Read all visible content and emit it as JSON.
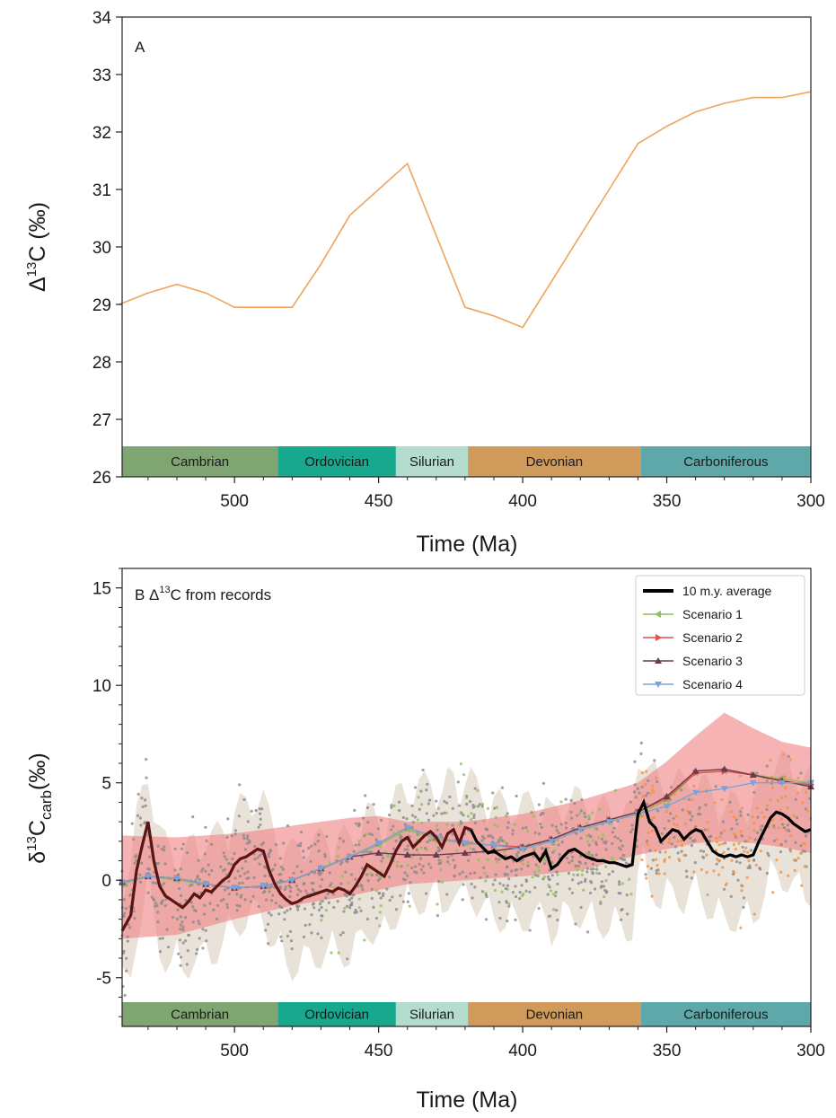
{
  "periods": [
    {
      "name": "Cambrian",
      "start": 539,
      "end": 485,
      "color": "#7fa672"
    },
    {
      "name": "Ordovician",
      "start": 485,
      "end": 444,
      "color": "#17a88e"
    },
    {
      "name": "Silurian",
      "start": 444,
      "end": 419,
      "color": "#b4dccc"
    },
    {
      "name": "Devonian",
      "start": 419,
      "end": 359,
      "color": "#cf9a5a"
    },
    {
      "name": "Carboniferous",
      "start": 359,
      "end": 299,
      "color": "#5fa8a9"
    }
  ],
  "chart_data": [
    {
      "type": "line",
      "panel_label": "A",
      "xlabel": "Time (Ma)",
      "ylabel": "Δ13C (‰)",
      "ylabel_parts": {
        "prefix": "Δ",
        "sup": "13",
        "main": "C (‰)"
      },
      "xlim": [
        539,
        300
      ],
      "ylim": [
        26,
        34
      ],
      "x_ticks": [
        500,
        450,
        400,
        350,
        300
      ],
      "y_ticks": [
        26,
        27,
        28,
        29,
        30,
        31,
        32,
        33,
        34
      ],
      "grid": false,
      "line_color": "#f0a35c",
      "x": [
        540,
        530,
        520,
        510,
        500,
        490,
        480,
        470,
        460,
        450,
        440,
        420,
        410,
        400,
        390,
        380,
        370,
        360,
        350,
        340,
        330,
        320,
        310,
        300
      ],
      "y": [
        29.0,
        29.2,
        29.35,
        29.2,
        28.95,
        28.95,
        28.95,
        29.7,
        30.55,
        31.0,
        31.45,
        28.95,
        28.8,
        28.6,
        29.4,
        30.2,
        31.0,
        31.8,
        32.1,
        32.35,
        32.5,
        32.6,
        32.6,
        32.7
      ]
    },
    {
      "type": "line",
      "panel_label": "B Δ13C from records",
      "panel_label_parts": {
        "prefix": "B Δ",
        "sup": "13",
        "main": "C from records"
      },
      "xlabel": "Time (Ma)",
      "ylabel": "δ13Ccarb(‰)",
      "ylabel_parts": {
        "prefix": "δ",
        "sup": "13",
        "main": "C",
        "sub": "carb",
        "suffix": "(‰)"
      },
      "xlim": [
        539,
        300
      ],
      "ylim": [
        -7.5,
        16
      ],
      "x_ticks": [
        500,
        450,
        400,
        350,
        300
      ],
      "y_ticks": [
        -5,
        0,
        5,
        10,
        15
      ],
      "grid": false,
      "legend_position": "top-right",
      "series": [
        {
          "name": "10 m.y. average",
          "color": "#000000",
          "marker": "none",
          "x": [
            539,
            536,
            534,
            532,
            530,
            528,
            526,
            524,
            522,
            520,
            518,
            516,
            514,
            512,
            510,
            508,
            506,
            504,
            502,
            500,
            498,
            496,
            494,
            492,
            490,
            488,
            486,
            484,
            482,
            480,
            478,
            476,
            474,
            472,
            470,
            468,
            466,
            464,
            462,
            460,
            458,
            456,
            454,
            452,
            450,
            448,
            446,
            444,
            442,
            440,
            438,
            436,
            434,
            432,
            430,
            428,
            426,
            424,
            422,
            420,
            418,
            416,
            414,
            412,
            410,
            408,
            406,
            404,
            402,
            400,
            398,
            396,
            394,
            392,
            390,
            388,
            386,
            384,
            382,
            380,
            378,
            376,
            374,
            372,
            370,
            368,
            366,
            364,
            362,
            360,
            358,
            356,
            354,
            352,
            350,
            348,
            346,
            344,
            342,
            340,
            338,
            336,
            334,
            332,
            330,
            328,
            326,
            324,
            322,
            320,
            318,
            316,
            314,
            312,
            310,
            308,
            306,
            304,
            302,
            300
          ],
          "y": [
            -2.6,
            -1.8,
            0.5,
            1.8,
            3.0,
            1.0,
            -0.3,
            -0.8,
            -1.0,
            -1.2,
            -1.4,
            -1.1,
            -0.7,
            -0.9,
            -0.5,
            -0.6,
            -0.3,
            0.0,
            0.2,
            0.8,
            1.1,
            1.2,
            1.4,
            1.6,
            1.5,
            0.5,
            -0.2,
            -0.7,
            -1.0,
            -1.2,
            -1.1,
            -0.9,
            -0.8,
            -0.7,
            -0.6,
            -0.5,
            -0.6,
            -0.4,
            -0.5,
            -0.7,
            -0.3,
            0.2,
            0.8,
            0.6,
            0.4,
            0.2,
            0.8,
            1.5,
            2.0,
            2.2,
            1.7,
            2.0,
            2.3,
            2.5,
            2.2,
            1.7,
            2.4,
            2.6,
            1.9,
            2.7,
            2.6,
            2.0,
            1.7,
            1.4,
            1.5,
            1.3,
            1.1,
            1.2,
            1.0,
            1.2,
            1.3,
            1.4,
            1.0,
            1.5,
            0.6,
            0.8,
            1.2,
            1.5,
            1.6,
            1.4,
            1.2,
            1.1,
            1.0,
            1.0,
            0.9,
            0.9,
            0.8,
            0.7,
            0.8,
            3.4,
            4.0,
            3.0,
            2.7,
            2.0,
            2.3,
            2.6,
            2.5,
            2.1,
            2.4,
            2.6,
            2.5,
            2.0,
            1.5,
            1.3,
            1.2,
            1.3,
            1.2,
            1.3,
            1.2,
            1.3,
            2.0,
            2.6,
            3.2,
            3.5,
            3.4,
            3.2,
            2.9,
            2.7,
            2.5,
            2.6
          ]
        },
        {
          "name": "Scenario 1",
          "color": "#8cc05a",
          "marker": "triangle-left",
          "x": [
            539,
            530,
            520,
            510,
            500,
            490,
            480,
            470,
            460,
            450,
            440,
            430,
            420,
            410,
            400,
            390,
            380,
            370,
            360,
            350,
            340,
            330,
            320,
            310,
            300
          ],
          "y": [
            -0.2,
            0.2,
            0.0,
            -0.2,
            -0.4,
            -0.3,
            0.0,
            0.6,
            1.2,
            1.8,
            2.6,
            2.1,
            1.9,
            1.8,
            1.6,
            2.0,
            2.6,
            3.0,
            3.4,
            4.1,
            5.5,
            5.6,
            5.4,
            5.2,
            5.0
          ]
        },
        {
          "name": "Scenario 2",
          "color": "#e05050",
          "marker": "triangle-right",
          "x": [
            539,
            530,
            520,
            510,
            500,
            490,
            480,
            470,
            460,
            450,
            440,
            430,
            420,
            410,
            400,
            390,
            380,
            370,
            360,
            350,
            340,
            330,
            320,
            310,
            300
          ],
          "y": [
            -0.1,
            0.2,
            0.1,
            -0.2,
            -0.4,
            -0.3,
            0.0,
            0.6,
            1.2,
            1.9,
            2.7,
            2.2,
            1.9,
            1.8,
            1.7,
            2.1,
            2.7,
            3.1,
            3.5,
            4.2,
            5.5,
            5.6,
            5.4,
            5.1,
            4.9
          ]
        },
        {
          "name": "Scenario 3",
          "color": "#6b3a4e",
          "marker": "triangle-up",
          "x": [
            539,
            530,
            520,
            510,
            500,
            490,
            480,
            470,
            460,
            450,
            440,
            430,
            420,
            410,
            400,
            390,
            380,
            370,
            360,
            350,
            340,
            330,
            320,
            310,
            300
          ],
          "y": [
            -0.1,
            0.2,
            0.1,
            -0.2,
            -0.4,
            -0.3,
            0.0,
            0.6,
            1.2,
            1.4,
            1.3,
            1.3,
            1.4,
            1.5,
            1.7,
            2.1,
            2.7,
            3.1,
            3.5,
            4.3,
            5.6,
            5.7,
            5.4,
            5.1,
            4.8
          ]
        },
        {
          "name": "Scenario 4",
          "color": "#7aa3d9",
          "marker": "triangle-down",
          "x": [
            539,
            530,
            520,
            510,
            500,
            490,
            480,
            470,
            460,
            450,
            440,
            430,
            420,
            410,
            400,
            390,
            380,
            370,
            360,
            350,
            340,
            330,
            320,
            310,
            300
          ],
          "y": [
            -0.1,
            0.2,
            0.1,
            -0.2,
            -0.4,
            -0.3,
            0.0,
            0.6,
            1.2,
            1.9,
            2.7,
            2.2,
            1.9,
            1.8,
            1.6,
            2.0,
            2.6,
            3.0,
            3.4,
            3.8,
            4.5,
            4.7,
            5.0,
            5.0,
            5.0
          ]
        }
      ],
      "envelope_red": {
        "color": "#f08080",
        "x": [
          539,
          520,
          500,
          480,
          460,
          450,
          440,
          420,
          400,
          380,
          360,
          350,
          340,
          330,
          320,
          310,
          300
        ],
        "upper": [
          2.3,
          2.2,
          2.4,
          2.8,
          3.2,
          3.3,
          3.0,
          3.0,
          3.4,
          4.1,
          5.0,
          6.1,
          7.4,
          8.6,
          7.8,
          7.1,
          6.8
        ],
        "lower": [
          -3.0,
          -2.8,
          -2.0,
          -1.3,
          -0.8,
          -0.5,
          -0.2,
          0.0,
          0.2,
          0.5,
          1.3,
          1.6,
          1.9,
          2.0,
          1.9,
          1.7,
          1.4
        ]
      }
    }
  ]
}
